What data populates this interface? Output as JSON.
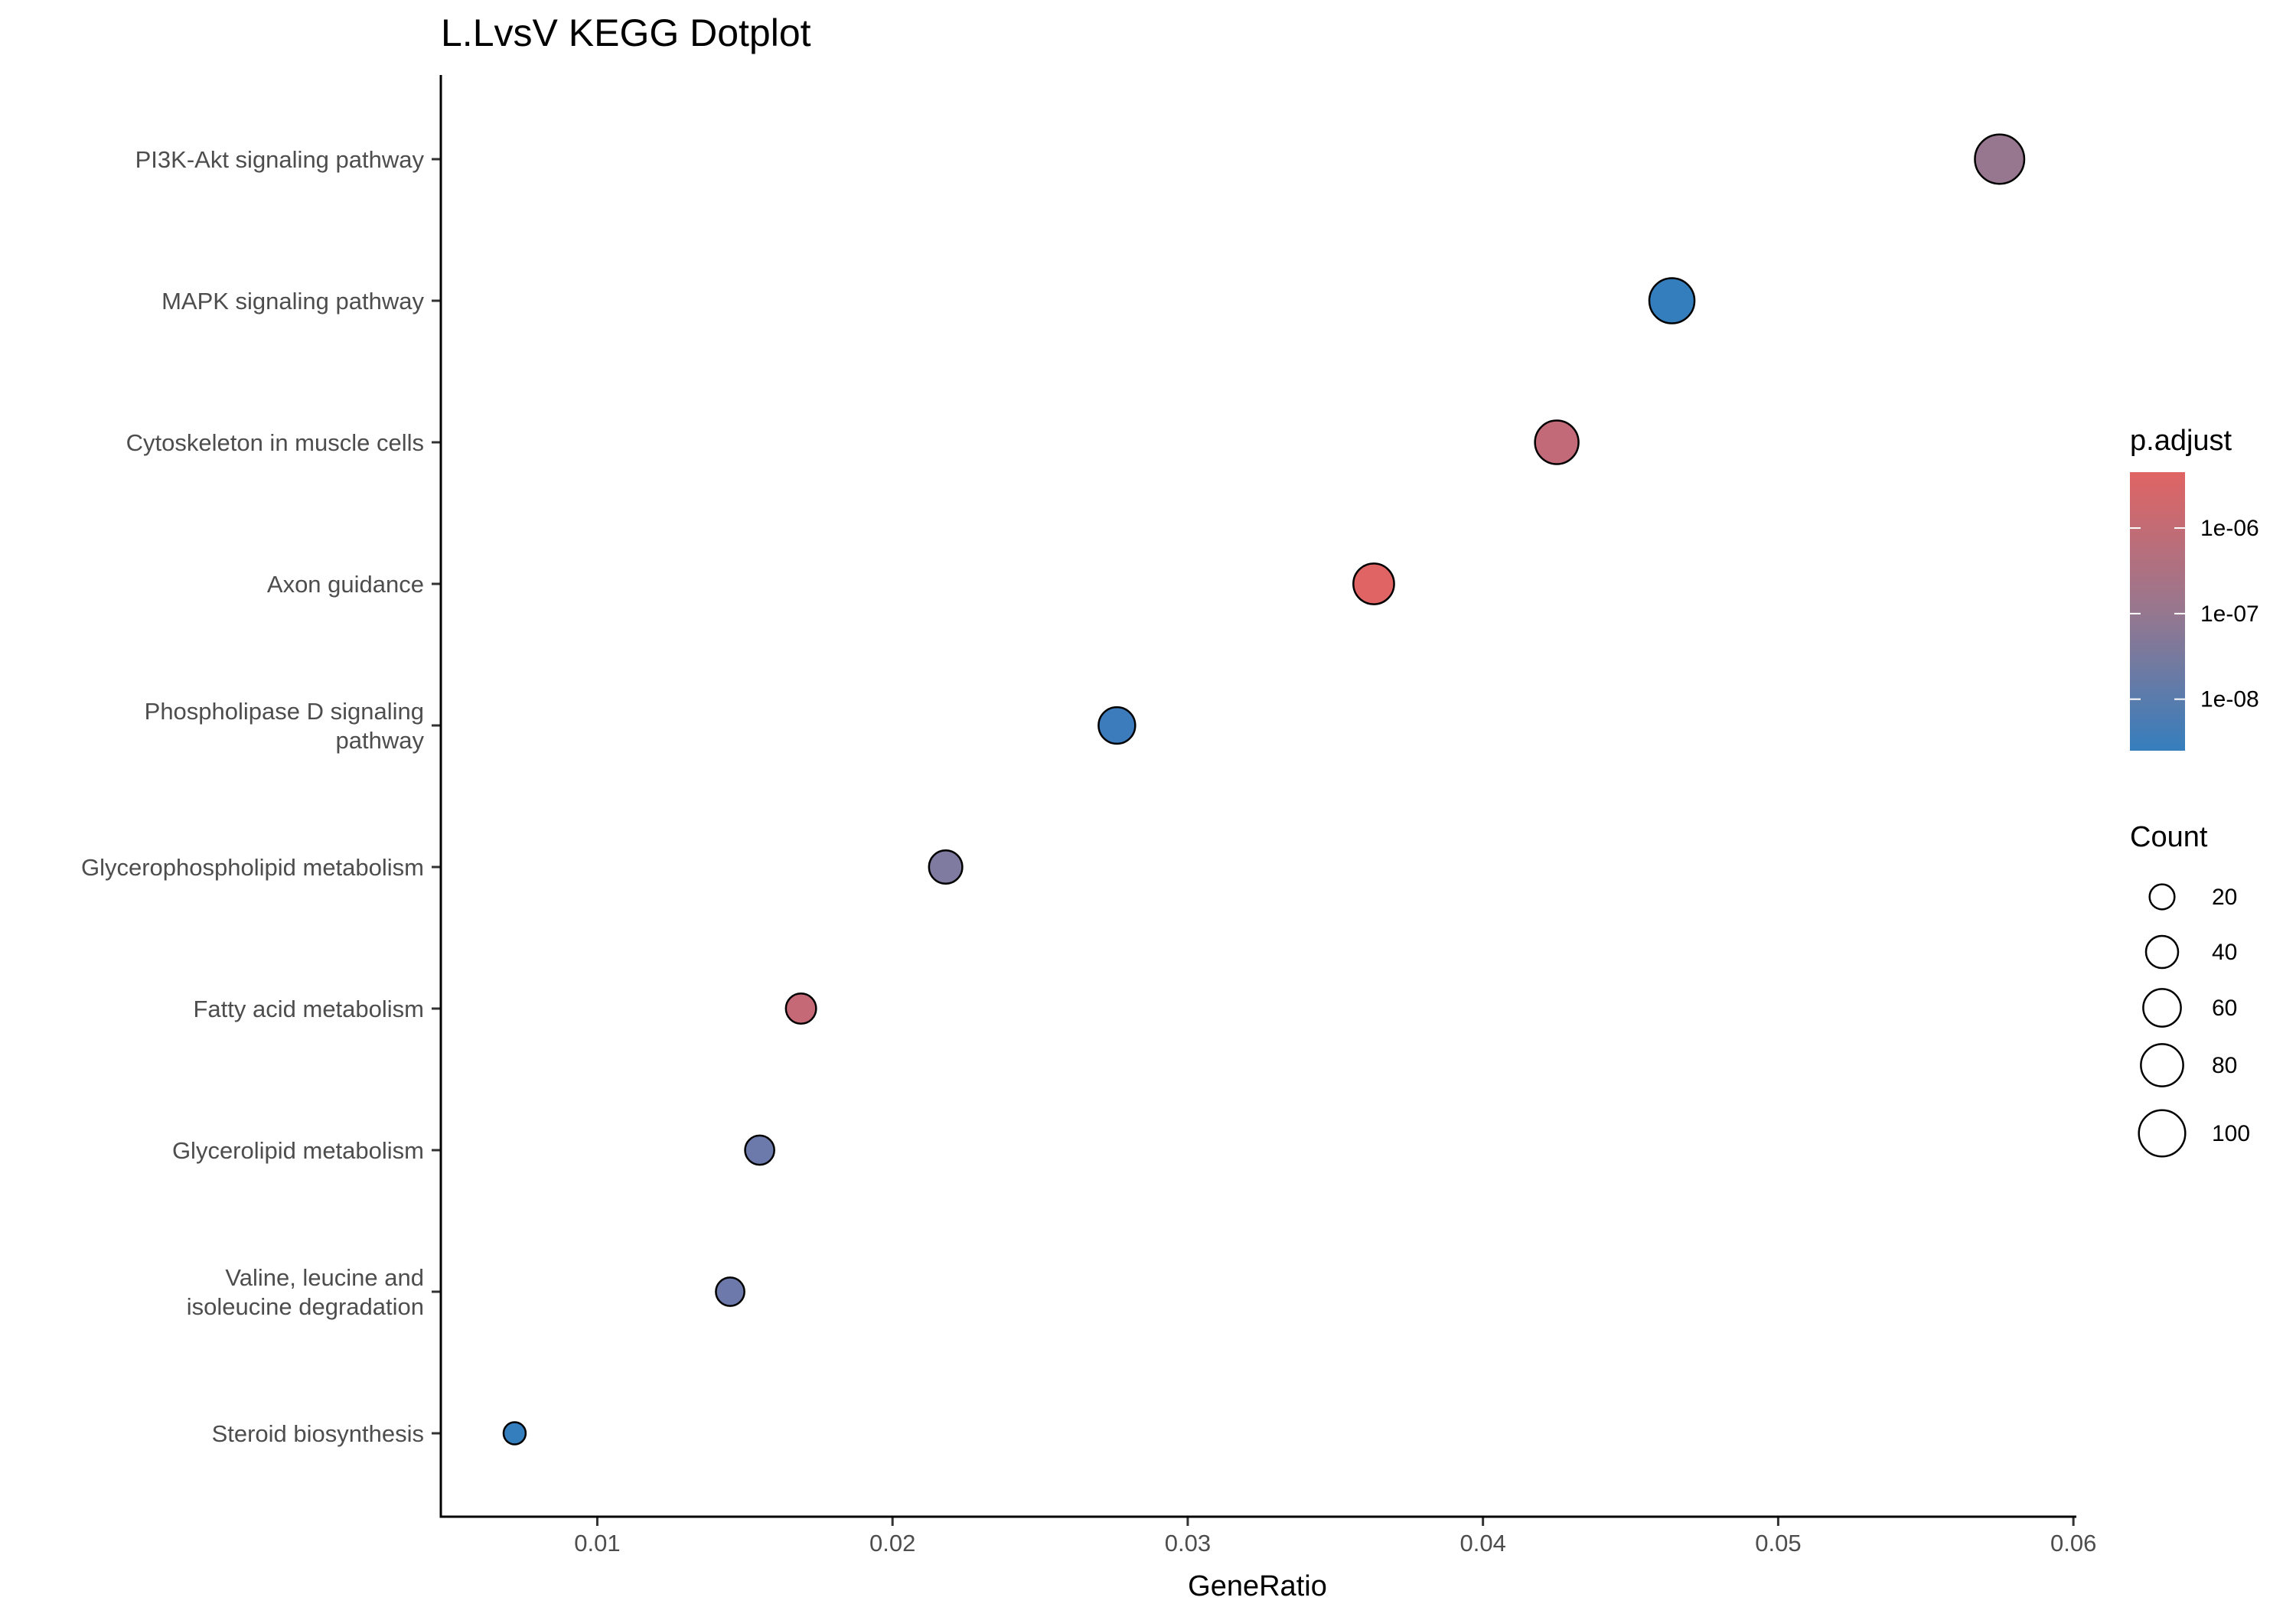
{
  "chart_data": {
    "type": "scatter",
    "title": "L.LvsV KEGG Dotplot",
    "xlabel": "GeneRatio",
    "ylabel": "",
    "xlim": [
      0.0047,
      0.0601
    ],
    "x_ticks": [
      0.01,
      0.02,
      0.03,
      0.04,
      0.05,
      0.06
    ],
    "x_tick_labels": [
      "0.01",
      "0.02",
      "0.03",
      "0.04",
      "0.05",
      "0.06"
    ],
    "grid": false,
    "categories": [
      [
        "PI3K-Akt signaling pathway"
      ],
      [
        "MAPK signaling pathway"
      ],
      [
        "Cytoskeleton in muscle cells"
      ],
      [
        "Axon guidance"
      ],
      [
        "Phospholipase D signaling",
        "pathway"
      ],
      [
        "Glycerophospholipid metabolism"
      ],
      [
        "Fatty acid metabolism"
      ],
      [
        "Glycerolipid metabolism"
      ],
      [
        "Valine, leucine and",
        "isoleucine degradation"
      ],
      [
        "Steroid biosynthesis"
      ]
    ],
    "points": [
      {
        "x": 0.0575,
        "count": 116,
        "p_adjust": 5e-08,
        "color": "#97778f"
      },
      {
        "x": 0.0464,
        "count": 94,
        "p_adjust": 3e-06,
        "color": "#357ebd"
      },
      {
        "x": 0.0425,
        "count": 86,
        "p_adjust": 6e-09,
        "color": "#c36a78"
      },
      {
        "x": 0.0363,
        "count": 73,
        "p_adjust": 2e-09,
        "color": "#e06463"
      },
      {
        "x": 0.0276,
        "count": 56,
        "p_adjust": 3e-06,
        "color": "#3c7cbc"
      },
      {
        "x": 0.0218,
        "count": 44,
        "p_adjust": 2e-07,
        "color": "#7f7aa0"
      },
      {
        "x": 0.0169,
        "count": 34,
        "p_adjust": 6e-09,
        "color": "#c66976"
      },
      {
        "x": 0.0155,
        "count": 31,
        "p_adjust": 5e-07,
        "color": "#6c7aab"
      },
      {
        "x": 0.0145,
        "count": 29,
        "p_adjust": 5e-07,
        "color": "#6d79aa"
      },
      {
        "x": 0.0072,
        "count": 14,
        "p_adjust": 3e-06,
        "color": "#357ebd"
      }
    ],
    "legend": {
      "placement": "right",
      "color": {
        "title": "p.adjust",
        "ticks": [
          "1e-08",
          "1e-07",
          "1e-06"
        ],
        "tick_values": [
          1e-08,
          1e-07,
          1e-06
        ],
        "range": [
          2.5e-09,
          4.5e-06
        ],
        "low_color": "#357ebd",
        "mid_color": "#97778f",
        "high_color": "#e06463"
      },
      "size": {
        "title": "Count",
        "values": [
          20,
          40,
          60,
          80,
          100
        ],
        "labels": [
          "20",
          "40",
          "60",
          "80",
          "100"
        ]
      }
    }
  }
}
